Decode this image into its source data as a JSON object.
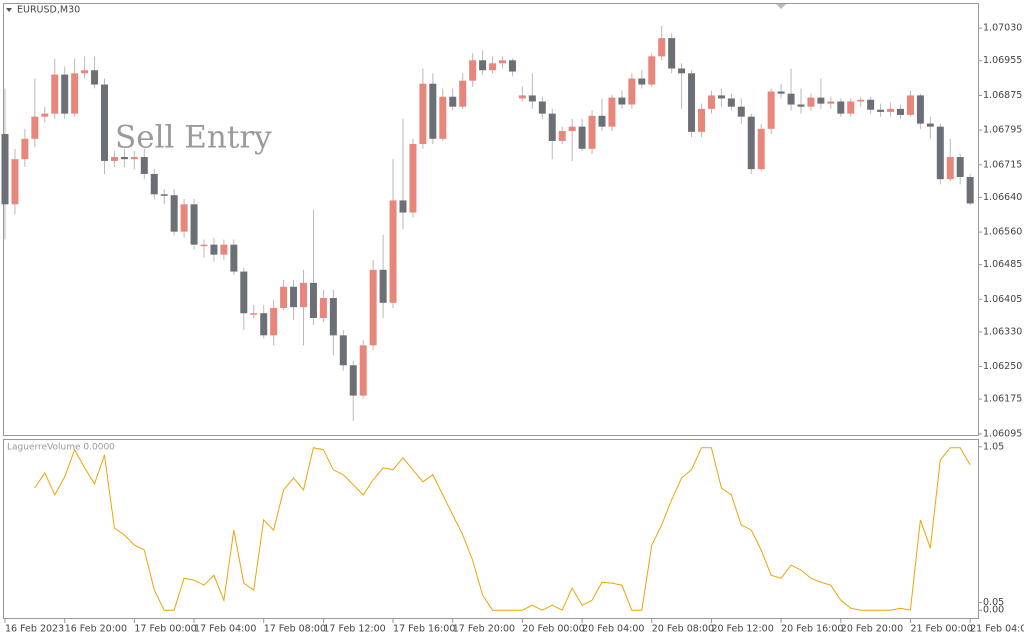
{
  "chart_data": [
    {
      "type": "candlestick",
      "title": "EURUSD,M30",
      "annotation": "Sell Entry",
      "x": [
        "16 Feb 2023",
        null,
        null,
        null,
        null,
        null,
        "16 Feb 20:00",
        null,
        null,
        null,
        null,
        null,
        null,
        "17 Feb 00:00",
        null,
        null,
        null,
        null,
        null,
        "17 Feb 04:00",
        null,
        null,
        null,
        null,
        null,
        null,
        "17 Feb 08:00",
        null,
        null,
        null,
        null,
        null,
        "17 Feb 12:00",
        null,
        null,
        null,
        null,
        null,
        null,
        "17 Feb 16:00",
        null,
        null,
        null,
        null,
        null,
        "17 Feb 20:00",
        null,
        null,
        null,
        null,
        null,
        null,
        "20 Feb 00:00",
        null,
        null,
        null,
        null,
        null,
        "20 Feb 04:00",
        null,
        null,
        null,
        null,
        null,
        null,
        "20 Feb 08:00",
        null,
        null,
        null,
        null,
        null,
        "20 Feb 12:00",
        null,
        null,
        null,
        null,
        null,
        null,
        "20 Feb 16:00",
        null,
        null,
        null,
        null,
        null,
        "20 Feb 20:00",
        null,
        null,
        null,
        null,
        null,
        null,
        "21 Feb 00:00",
        null,
        null,
        null,
        null,
        null,
        "21 Feb 04:00"
      ],
      "open": [
        1.06786,
        1.06624,
        1.06728,
        1.06775,
        1.06826,
        1.06833,
        1.06923,
        1.06833,
        1.06926,
        1.06933,
        1.069,
        1.06724,
        1.06733,
        1.06728,
        1.06733,
        1.06694,
        1.06647,
        1.06645,
        1.06561,
        1.06624,
        1.06531,
        1.06531,
        1.06508,
        1.06531,
        1.06469,
        1.06373,
        1.06373,
        1.06322,
        1.06385,
        1.06434,
        1.06387,
        1.06443,
        1.06362,
        1.06408,
        1.06322,
        1.06253,
        1.06183,
        1.06299,
        1.06473,
        1.06397,
        1.06633,
        1.06605,
        1.06763,
        1.06902,
        1.06775,
        1.06872,
        1.06849,
        1.06909,
        1.06956,
        1.06933,
        1.06949,
        1.06956,
        1.06868,
        1.06875,
        1.06861,
        1.06833,
        1.0677,
        1.06793,
        1.06803,
        1.06752,
        1.06828,
        1.06803,
        1.0687,
        1.06854,
        1.06914,
        1.069,
        1.06965,
        1.07007,
        1.06937,
        1.06926,
        1.06791,
        1.06844,
        1.06875,
        1.06868,
        1.06849,
        1.06826,
        1.06705,
        1.06798,
        1.06884,
        1.06879,
        1.06854,
        1.06849,
        1.0687,
        1.06856,
        1.06861,
        1.06833,
        1.06861,
        1.06865,
        1.06842,
        1.06837,
        1.06844,
        1.0683,
        1.06875,
        1.0681,
        1.06803,
        1.06682,
        1.06733,
        1.06687
      ],
      "high": [
        1.06891,
        1.06752,
        1.06798,
        1.06914,
        1.06849,
        1.0696,
        1.06942,
        1.0696,
        1.06965,
        1.06965,
        1.06914,
        1.06747,
        1.06752,
        1.06747,
        1.06752,
        1.06705,
        1.06659,
        1.06659,
        1.06636,
        1.06636,
        1.06543,
        1.06547,
        1.06543,
        1.06543,
        1.06478,
        1.06392,
        1.06392,
        1.06404,
        1.0645,
        1.0645,
        1.06473,
        1.06612,
        1.06427,
        1.06427,
        1.06334,
        1.06264,
        1.06311,
        1.06496,
        1.06554,
        1.06728,
        1.06821,
        1.06775,
        1.06937,
        1.06926,
        1.06891,
        1.06891,
        1.06926,
        1.06972,
        1.06979,
        1.06965,
        1.06965,
        1.0696,
        1.06895,
        1.06926,
        1.06872,
        1.06844,
        1.06803,
        1.06821,
        1.06821,
        1.0684,
        1.06868,
        1.06877,
        1.06886,
        1.06926,
        1.06933,
        1.06972,
        1.07035,
        1.07018,
        1.06949,
        1.06933,
        1.06856,
        1.06886,
        1.06891,
        1.06879,
        1.06868,
        1.06833,
        1.0681,
        1.06891,
        1.06902,
        1.06937,
        1.06891,
        1.06879,
        1.06914,
        1.06872,
        1.06868,
        1.06868,
        1.06872,
        1.06872,
        1.06856,
        1.06858,
        1.06854,
        1.06886,
        1.06879,
        1.06826,
        1.0681,
        1.06775,
        1.0674,
        1.06694
      ],
      "low": [
        1.06543,
        1.06601,
        1.0671,
        1.06756,
        1.06812,
        1.06821,
        1.06821,
        1.06826,
        1.06914,
        1.06891,
        1.06694,
        1.0671,
        1.0671,
        1.06705,
        1.06682,
        1.06636,
        1.06624,
        1.06552,
        1.06547,
        1.0652,
        1.06501,
        1.06492,
        1.06496,
        1.06462,
        1.06334,
        1.06362,
        1.06315,
        1.06299,
        1.0638,
        1.06357,
        1.06299,
        1.06346,
        1.06353,
        1.06276,
        1.06241,
        1.06125,
        1.06176,
        1.06288,
        1.06362,
        1.06385,
        1.06566,
        1.06594,
        1.06752,
        1.06763,
        1.0677,
        1.0684,
        1.06844,
        1.06895,
        1.06923,
        1.06926,
        1.06937,
        1.06919,
        1.06861,
        1.06844,
        1.06821,
        1.06728,
        1.06763,
        1.06724,
        1.06747,
        1.0674,
        1.06793,
        1.06793,
        1.06844,
        1.06844,
        1.06891,
        1.06895,
        1.06956,
        1.06926,
        1.06844,
        1.06779,
        1.06779,
        1.06833,
        1.06849,
        1.0684,
        1.0681,
        1.06694,
        1.06701,
        1.06786,
        1.06868,
        1.0684,
        1.06833,
        1.0684,
        1.06844,
        1.06844,
        1.06826,
        1.06826,
        1.06849,
        1.06833,
        1.06826,
        1.06826,
        1.06821,
        1.06826,
        1.06798,
        1.06775,
        1.0667,
        1.06677,
        1.0667,
        1.06622
      ],
      "close": [
        1.06624,
        1.06728,
        1.06775,
        1.06826,
        1.06833,
        1.06923,
        1.06833,
        1.06926,
        1.06933,
        1.069,
        1.06724,
        1.06733,
        1.06728,
        1.06733,
        1.06694,
        1.06647,
        1.06645,
        1.06561,
        1.06624,
        1.06531,
        1.06531,
        1.06508,
        1.06531,
        1.06469,
        1.06373,
        1.06373,
        1.06322,
        1.06385,
        1.06434,
        1.06387,
        1.06443,
        1.06362,
        1.06408,
        1.06322,
        1.06253,
        1.06183,
        1.06299,
        1.06473,
        1.06397,
        1.06633,
        1.06605,
        1.06763,
        1.06902,
        1.06775,
        1.06872,
        1.06849,
        1.06909,
        1.06956,
        1.06933,
        1.06949,
        1.06956,
        1.0693,
        1.06875,
        1.06861,
        1.06833,
        1.0677,
        1.06793,
        1.06803,
        1.06752,
        1.06828,
        1.06803,
        1.0687,
        1.06854,
        1.06914,
        1.069,
        1.06965,
        1.07007,
        1.06937,
        1.06926,
        1.06791,
        1.06844,
        1.06875,
        1.06868,
        1.06849,
        1.06826,
        1.06705,
        1.06798,
        1.06884,
        1.06879,
        1.06854,
        1.06849,
        1.0687,
        1.06856,
        1.06861,
        1.06833,
        1.06861,
        1.06865,
        1.06842,
        1.06837,
        1.06844,
        1.0683,
        1.06875,
        1.0681,
        1.06803,
        1.06682,
        1.06733,
        1.06687,
        1.06626
      ],
      "up_color": "#e9867b",
      "down_color": "#6c6f76",
      "wick_color": "#b9b9b9",
      "ylim": [
        1.0609,
        1.07088
      ],
      "yticks": [
        {
          "value": 1.0703,
          "label": "1.07030"
        },
        1.06955,
        1.06875,
        1.06795,
        1.06715,
        {
          "value": 1.0664,
          "label": "1.06640"
        },
        {
          "value": 1.0656,
          "label": "1.06560"
        },
        1.06485,
        1.06405,
        {
          "value": 1.0633,
          "label": "1.06330"
        },
        {
          "value": 1.0625,
          "label": "1.06250"
        },
        1.06175,
        1.06095
      ]
    },
    {
      "type": "line",
      "title": "LaguerreVolume 0.0000",
      "color": "#f0a30a",
      "values": [
        null,
        null,
        null,
        0.786,
        0.883,
        0.741,
        0.857,
        1.031,
        0.915,
        0.812,
        0.998,
        0.528,
        0.483,
        0.419,
        0.387,
        0.129,
        0,
        0,
        0.206,
        0.193,
        0.161,
        0.225,
        0.064,
        0.515,
        0.174,
        0.129,
        0.58,
        0.515,
        0.773,
        0.85,
        0.773,
        1.044,
        1.031,
        0.902,
        0.87,
        0.805,
        0.741,
        0.837,
        0.915,
        0.902,
        0.979,
        0.902,
        0.825,
        0.87,
        0.741,
        0.612,
        0.483,
        0.322,
        0.097,
        0,
        0,
        0,
        0,
        0.032,
        0,
        0.032,
        0,
        0.142,
        0.032,
        0.064,
        0.18,
        0.174,
        0.161,
        0,
        0,
        0.419,
        0.548,
        0.709,
        0.85,
        0.902,
        1.044,
        1.044,
        0.786,
        0.741,
        0.548,
        0.515,
        0.387,
        0.225,
        0.206,
        0.29,
        0.258,
        0.206,
        0.18,
        0.161,
        0.064,
        0.013,
        0,
        0,
        0,
        0,
        0.013,
        0,
        0.58,
        0.399,
        0.966,
        1.044,
        1.044,
        0.934
      ],
      "ylim": [
        -0.05,
        1.1
      ],
      "yticks": [
        1.05,
        0.05,
        {
          "value": 0,
          "label": "0.00"
        }
      ]
    }
  ]
}
